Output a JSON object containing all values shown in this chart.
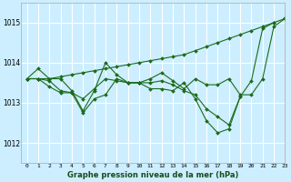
{
  "background_color": "#cceeff",
  "plot_bg_color": "#cceeff",
  "grid_color": "#ffffff",
  "line_color": "#1a6b1a",
  "marker_color": "#1a6b1a",
  "xlabel": "Graphe pression niveau de la mer (hPa)",
  "ylim": [
    1011.5,
    1015.5
  ],
  "xlim": [
    -0.5,
    23
  ],
  "yticks": [
    1012,
    1013,
    1014,
    1015
  ],
  "xticks": [
    0,
    1,
    2,
    3,
    4,
    5,
    6,
    7,
    8,
    9,
    10,
    11,
    12,
    13,
    14,
    15,
    16,
    17,
    18,
    19,
    20,
    21,
    22,
    23
  ],
  "series": [
    [
      1013.6,
      1013.85,
      1013.6,
      1013.6,
      1013.3,
      1012.8,
      1013.3,
      1014.0,
      1013.7,
      1013.5,
      1013.5,
      1013.6,
      1013.75,
      1013.55,
      1013.35,
      1013.6,
      1013.45,
      1013.45,
      1013.6,
      1013.2,
      1013.2,
      1013.6,
      1014.9,
      1015.1
    ],
    [
      1013.6,
      1013.6,
      1013.55,
      1013.3,
      1013.25,
      1012.75,
      1013.1,
      1013.2,
      1013.6,
      1013.5,
      1013.5,
      1013.35,
      1013.35,
      1013.3,
      1013.5,
      1013.1,
      1012.55,
      1012.25,
      1012.35,
      1013.15,
      null,
      null,
      null,
      null
    ],
    [
      1013.6,
      1013.6,
      1013.4,
      1013.25,
      1013.25,
      1013.1,
      1013.35,
      1013.6,
      1013.55,
      1013.5,
      1013.5,
      1013.5,
      1013.55,
      1013.45,
      1013.3,
      1013.2,
      1012.85,
      1012.65,
      1012.45,
      1013.15,
      1013.55,
      1014.85,
      1015.0,
      null
    ],
    [
      1013.6,
      1013.6,
      1013.6,
      1013.65,
      1013.7,
      1013.75,
      1013.8,
      1013.85,
      1013.9,
      1013.95,
      1014.0,
      1014.05,
      1014.1,
      1014.15,
      1014.2,
      1014.3,
      1014.4,
      1014.5,
      1014.6,
      1014.7,
      1014.8,
      1014.9,
      1015.0,
      1015.1
    ]
  ]
}
